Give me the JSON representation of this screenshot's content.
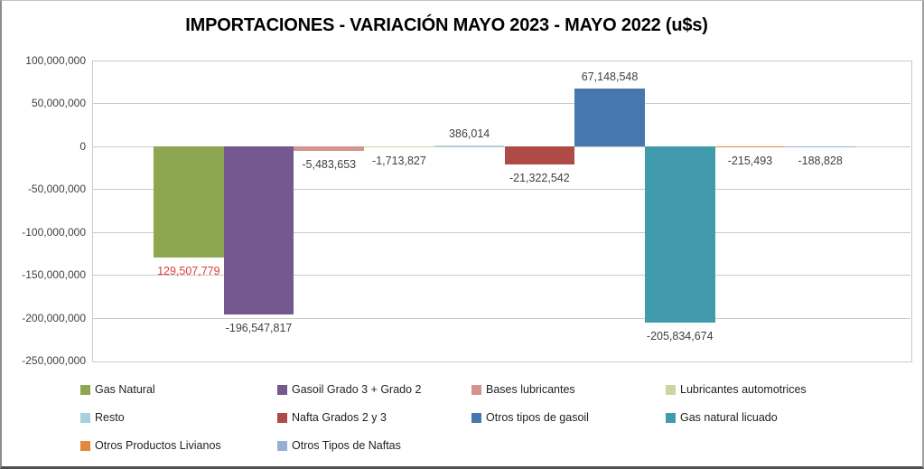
{
  "title": "IMPORTACIONES - VARIACIÓN MAYO 2023 - MAYO 2022 (u$s)",
  "chart_data": {
    "type": "bar",
    "title": "IMPORTACIONES - VARIACIÓN MAYO 2023 - MAYO 2022 (u$s)",
    "categories": [
      ""
    ],
    "series": [
      {
        "name": "Gas Natural",
        "value": -129507779,
        "display_label": "129,507,779",
        "color": "#8DA650",
        "label_color": "#E23B3B"
      },
      {
        "name": "Gasoil Grado 3 + Grado 2",
        "value": -196547817,
        "display_label": "-196,547,817",
        "color": "#74598F",
        "label_color": "#404040"
      },
      {
        "name": "Bases lubricantes",
        "value": -5483653,
        "display_label": "-5,483,653",
        "color": "#D5938F",
        "label_color": "#404040"
      },
      {
        "name": "Lubricantes automotrices",
        "value": -1713827,
        "display_label": "-1,713,827",
        "color": "#C9D6A2",
        "label_color": "#404040"
      },
      {
        "name": "Resto",
        "value": 386014,
        "display_label": "386,014",
        "color": "#A8D1E0",
        "label_color": "#404040"
      },
      {
        "name": "Nafta Grados 2 y 3",
        "value": -21322542,
        "display_label": "-21,322,542",
        "color": "#AF4B47",
        "label_color": "#404040"
      },
      {
        "name": "Otros tipos de gasoil",
        "value": 67148548,
        "display_label": "67,148,548",
        "color": "#4678AE",
        "label_color": "#404040"
      },
      {
        "name": "Gas natural licuado",
        "value": -205834674,
        "display_label": "-205,834,674",
        "color": "#429AAD",
        "label_color": "#404040"
      },
      {
        "name": "Otros Productos Livianos",
        "value": -215493,
        "display_label": "-215,493",
        "color": "#E2883E",
        "label_color": "#404040"
      },
      {
        "name": "Otros Tipos de Naftas",
        "value": -188828,
        "display_label": "-188,828",
        "color": "#96AFD3",
        "label_color": "#404040"
      }
    ],
    "y_axis": {
      "max": 100000000,
      "min": -250000000,
      "step": 50000000,
      "tick_labels": [
        "100,000,000",
        "50,000,000",
        "0",
        "-50,000,000",
        "-100,000,000",
        "-150,000,000",
        "-200,000,000",
        "-250,000,000"
      ]
    },
    "grid": true,
    "legend_position": "bottom"
  }
}
